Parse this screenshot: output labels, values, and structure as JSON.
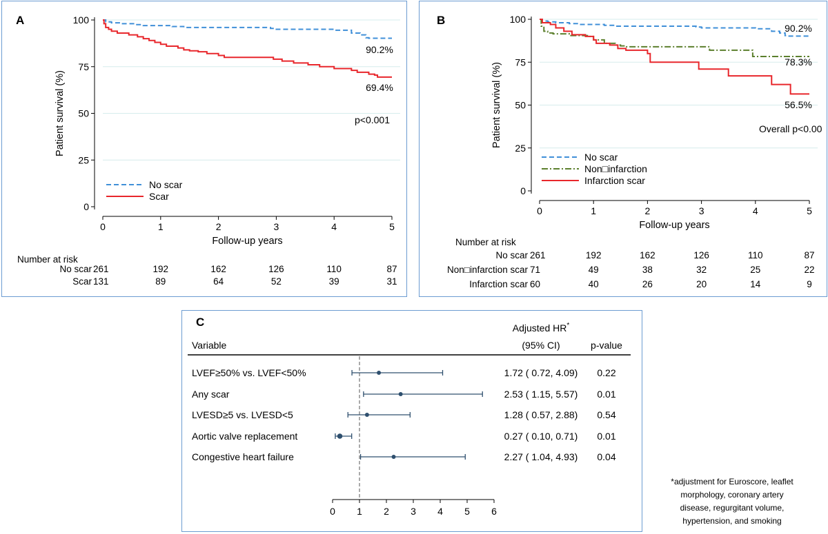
{
  "chart_data": [
    {
      "type": "line",
      "panel_letter": "A",
      "xlabel": "Follow-up years",
      "ylabel": "Patient survival (%)",
      "xlim": [
        0,
        5
      ],
      "ylim": [
        0,
        100
      ],
      "xticks": [
        "0",
        "1",
        "2",
        "3",
        "4",
        "5"
      ],
      "yticks": [
        "0",
        "25",
        "50",
        "75",
        "100"
      ],
      "legend_placement": "bottom-left",
      "series": [
        {
          "name": "No scar",
          "style": "dashed",
          "color": "#3f8fd8",
          "end_label": "90.2%",
          "points": [
            [
              0,
              100
            ],
            [
              0.05,
              99
            ],
            [
              0.15,
              98.5
            ],
            [
              0.3,
              98
            ],
            [
              0.55,
              97.5
            ],
            [
              0.7,
              97
            ],
            [
              1.2,
              96.5
            ],
            [
              1.4,
              96
            ],
            [
              2.0,
              96
            ],
            [
              2.5,
              96
            ],
            [
              2.9,
              95.5
            ],
            [
              3.0,
              95
            ],
            [
              3.5,
              95
            ],
            [
              4.0,
              94.5
            ],
            [
              4.3,
              93
            ],
            [
              4.45,
              92
            ],
            [
              4.55,
              90.5
            ],
            [
              4.6,
              90.2
            ],
            [
              5,
              90.2
            ]
          ]
        },
        {
          "name": "Scar",
          "style": "solid",
          "color": "#e8262b",
          "end_label": "69.4%",
          "points": [
            [
              0,
              100
            ],
            [
              0.02,
              98
            ],
            [
              0.05,
              96
            ],
            [
              0.1,
              95
            ],
            [
              0.15,
              94
            ],
            [
              0.25,
              93
            ],
            [
              0.45,
              92
            ],
            [
              0.6,
              91
            ],
            [
              0.7,
              90
            ],
            [
              0.8,
              89
            ],
            [
              0.9,
              88
            ],
            [
              1.0,
              87
            ],
            [
              1.1,
              86
            ],
            [
              1.3,
              85
            ],
            [
              1.4,
              84
            ],
            [
              1.5,
              83.5
            ],
            [
              1.65,
              83
            ],
            [
              1.8,
              82
            ],
            [
              2.0,
              81
            ],
            [
              2.1,
              80
            ],
            [
              2.3,
              80
            ],
            [
              2.95,
              79
            ],
            [
              3.1,
              78
            ],
            [
              3.3,
              77
            ],
            [
              3.55,
              76
            ],
            [
              3.75,
              75
            ],
            [
              4.0,
              74
            ],
            [
              4.3,
              73
            ],
            [
              4.4,
              72
            ],
            [
              4.6,
              71
            ],
            [
              4.7,
              70.5
            ],
            [
              4.75,
              69.4
            ],
            [
              5,
              69.4
            ]
          ]
        }
      ],
      "annotations": [
        {
          "text": "p<0.001"
        }
      ],
      "risk_table": {
        "title": "Number at risk",
        "rows": [
          {
            "label": "No scar",
            "values": [
              "261",
              "192",
              "162",
              "126",
              "110",
              "87"
            ]
          },
          {
            "label": "Scar",
            "values": [
              "131",
              "89",
              "64",
              "52",
              "39",
              "31"
            ]
          }
        ]
      }
    },
    {
      "type": "line",
      "panel_letter": "B",
      "xlabel": "Follow-up years",
      "ylabel": "Patient survival (%)",
      "xlim": [
        0,
        5
      ],
      "ylim": [
        0,
        100
      ],
      "xticks": [
        "0",
        "1",
        "2",
        "3",
        "4",
        "5"
      ],
      "yticks": [
        "0",
        "25",
        "50",
        "75",
        "100"
      ],
      "legend_placement": "bottom-left",
      "series": [
        {
          "name": "No scar",
          "style": "dashed",
          "color": "#3f8fd8",
          "end_label": "90.2%",
          "points": [
            [
              0,
              100
            ],
            [
              0.05,
              99
            ],
            [
              0.15,
              98.5
            ],
            [
              0.3,
              98
            ],
            [
              0.55,
              97.5
            ],
            [
              0.7,
              97
            ],
            [
              1.2,
              96.5
            ],
            [
              1.4,
              96
            ],
            [
              2.0,
              96
            ],
            [
              2.5,
              96
            ],
            [
              2.9,
              95.5
            ],
            [
              3.0,
              95
            ],
            [
              3.5,
              95
            ],
            [
              4.0,
              94.5
            ],
            [
              4.3,
              93
            ],
            [
              4.45,
              92
            ],
            [
              4.55,
              90.5
            ],
            [
              4.6,
              90.2
            ],
            [
              5,
              90.2
            ]
          ]
        },
        {
          "name": "Non□infarction",
          "style": "dashdot",
          "color": "#5b7f2c",
          "end_label": "78.3%",
          "points": [
            [
              0,
              100
            ],
            [
              0.03,
              96
            ],
            [
              0.08,
              93
            ],
            [
              0.15,
              92
            ],
            [
              0.25,
              91.5
            ],
            [
              0.5,
              91.5
            ],
            [
              0.55,
              90.5
            ],
            [
              0.9,
              90
            ],
            [
              1.0,
              88
            ],
            [
              1.2,
              86
            ],
            [
              1.4,
              85
            ],
            [
              1.5,
              84.5
            ],
            [
              1.6,
              84
            ],
            [
              3.1,
              84
            ],
            [
              3.15,
              82
            ],
            [
              3.9,
              82
            ],
            [
              3.95,
              78.3
            ],
            [
              5,
              78.3
            ]
          ]
        },
        {
          "name": "Infarction scar",
          "style": "solid",
          "color": "#e8262b",
          "end_label": "56.5%",
          "points": [
            [
              0,
              100
            ],
            [
              0.05,
              98
            ],
            [
              0.2,
              97
            ],
            [
              0.3,
              95
            ],
            [
              0.45,
              93
            ],
            [
              0.6,
              91
            ],
            [
              0.85,
              90
            ],
            [
              1.0,
              88
            ],
            [
              1.05,
              86
            ],
            [
              1.3,
              85
            ],
            [
              1.45,
              83
            ],
            [
              1.6,
              82
            ],
            [
              2.0,
              80
            ],
            [
              2.05,
              75
            ],
            [
              2.6,
              75
            ],
            [
              2.95,
              71
            ],
            [
              3.4,
              71
            ],
            [
              3.5,
              67
            ],
            [
              4.2,
              67
            ],
            [
              4.3,
              62
            ],
            [
              4.6,
              62
            ],
            [
              4.65,
              56.5
            ],
            [
              5,
              56.5
            ]
          ]
        }
      ],
      "annotations": [
        {
          "text": "Overall p<0.00"
        }
      ],
      "risk_table": {
        "title": "Number at risk",
        "rows": [
          {
            "label": "No scar",
            "values": [
              "261",
              "192",
              "162",
              "126",
              "110",
              "87"
            ]
          },
          {
            "label": "Non□infarction scar",
            "values": [
              "71",
              "49",
              "38",
              "32",
              "25",
              "22"
            ]
          },
          {
            "label": "Infarction scar",
            "values": [
              "60",
              "40",
              "26",
              "20",
              "14",
              "9"
            ]
          }
        ]
      }
    },
    {
      "type": "forest",
      "panel_letter": "C",
      "column_headers": {
        "variable": "Variable",
        "hr_line1": "Adjusted HR",
        "hr_marker": "*",
        "hr_line2": "(95% CI)",
        "pvalue": "p-value"
      },
      "xlim": [
        0,
        6
      ],
      "xticks": [
        "0",
        "1",
        "2",
        "3",
        "4",
        "5",
        "6"
      ],
      "reference_line": 1,
      "rows": [
        {
          "variable": "LVEF≥50% vs. LVEF<50%",
          "hr": 1.72,
          "low": 0.72,
          "high": 4.09,
          "ci_text": "1.72 ( 0.72,  4.09)",
          "p": "0.22"
        },
        {
          "variable": "Any scar",
          "hr": 2.53,
          "low": 1.15,
          "high": 5.57,
          "ci_text": "2.53 ( 1.15,  5.57)",
          "p": "0.01"
        },
        {
          "variable": "LVESD≥5 vs. LVESD<5",
          "hr": 1.28,
          "low": 0.57,
          "high": 2.88,
          "ci_text": "1.28 ( 0.57,  2.88)",
          "p": "0.54"
        },
        {
          "variable": "Aortic valve replacement",
          "hr": 0.27,
          "low": 0.1,
          "high": 0.71,
          "ci_text": "0.27 ( 0.10,  0.71)",
          "p": "0.01"
        },
        {
          "variable": "Congestive heart failure",
          "hr": 2.27,
          "low": 1.04,
          "high": 4.93,
          "ci_text": "2.27 ( 1.04,  4.93)",
          "p": "0.04"
        }
      ],
      "footnote": [
        "*adjustment for Euroscore, leaflet",
        "morphology, coronary artery",
        "disease, regurgitant volume,",
        "hypertension, and smoking"
      ]
    }
  ],
  "colors": {
    "frame": "#6b9bd1",
    "grid": "#d6ecec",
    "forest": "#2e4f6e",
    "refline": "#555555"
  }
}
